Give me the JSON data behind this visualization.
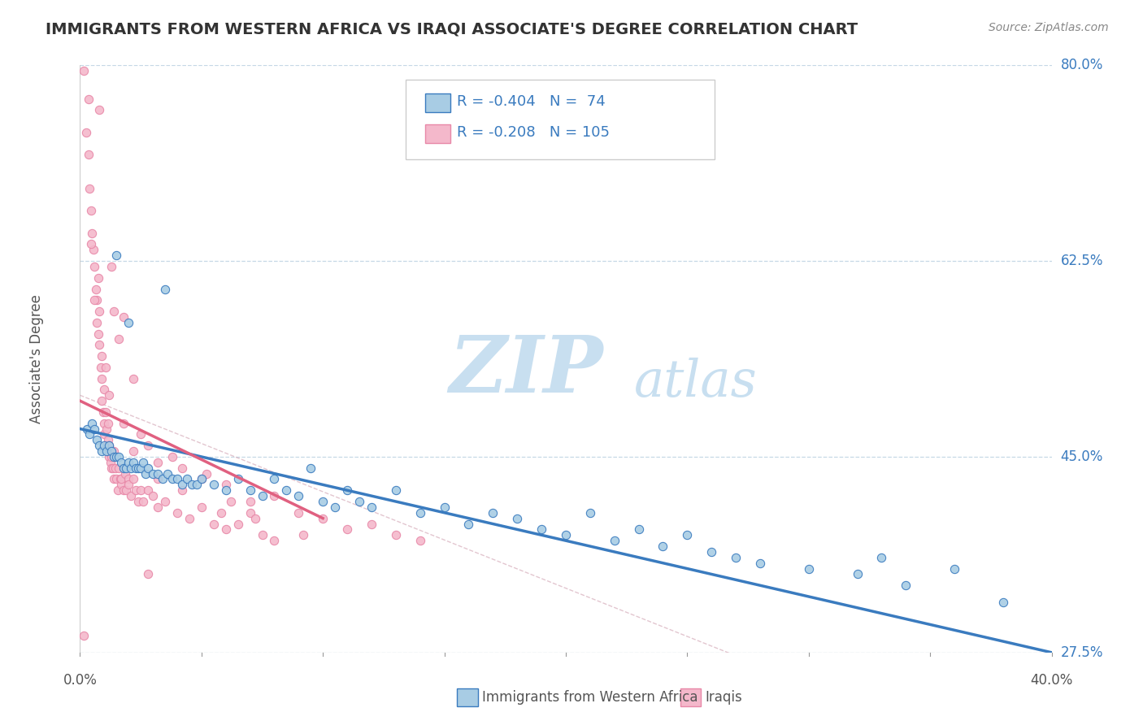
{
  "title": "IMMIGRANTS FROM WESTERN AFRICA VS IRAQI ASSOCIATE'S DEGREE CORRELATION CHART",
  "source": "Source: ZipAtlas.com",
  "xmin": 0.0,
  "xmax": 40.0,
  "ymin": 27.5,
  "ymax": 80.0,
  "ylabel": "Associate's Degree",
  "legend_label1": "Immigrants from Western Africa",
  "legend_label2": "Iraqis",
  "R1": -0.404,
  "N1": 74,
  "R2": -0.208,
  "N2": 105,
  "color_blue": "#a8cce4",
  "color_pink": "#f4b8cb",
  "color_blue_dark": "#3a7bbf",
  "color_pink_line": "#e06080",
  "watermark_zip_color": "#c8dff0",
  "watermark_atlas_color": "#c8dff0",
  "blue_scatter": [
    [
      0.3,
      47.5
    ],
    [
      0.4,
      47.0
    ],
    [
      0.5,
      48.0
    ],
    [
      0.6,
      47.5
    ],
    [
      0.7,
      46.5
    ],
    [
      0.8,
      46.0
    ],
    [
      0.9,
      45.5
    ],
    [
      1.0,
      46.0
    ],
    [
      1.1,
      45.5
    ],
    [
      1.2,
      46.0
    ],
    [
      1.3,
      45.5
    ],
    [
      1.4,
      45.0
    ],
    [
      1.5,
      45.0
    ],
    [
      1.6,
      45.0
    ],
    [
      1.7,
      44.5
    ],
    [
      1.8,
      44.0
    ],
    [
      1.9,
      44.0
    ],
    [
      2.0,
      44.5
    ],
    [
      2.1,
      44.0
    ],
    [
      2.2,
      44.5
    ],
    [
      2.3,
      44.0
    ],
    [
      2.4,
      44.0
    ],
    [
      2.5,
      44.0
    ],
    [
      2.6,
      44.5
    ],
    [
      2.7,
      43.5
    ],
    [
      2.8,
      44.0
    ],
    [
      3.0,
      43.5
    ],
    [
      3.2,
      43.5
    ],
    [
      3.4,
      43.0
    ],
    [
      3.6,
      43.5
    ],
    [
      3.8,
      43.0
    ],
    [
      4.0,
      43.0
    ],
    [
      4.2,
      42.5
    ],
    [
      4.4,
      43.0
    ],
    [
      4.6,
      42.5
    ],
    [
      4.8,
      42.5
    ],
    [
      5.0,
      43.0
    ],
    [
      5.5,
      42.5
    ],
    [
      6.0,
      42.0
    ],
    [
      6.5,
      43.0
    ],
    [
      7.0,
      42.0
    ],
    [
      7.5,
      41.5
    ],
    [
      8.0,
      43.0
    ],
    [
      8.5,
      42.0
    ],
    [
      9.0,
      41.5
    ],
    [
      9.5,
      44.0
    ],
    [
      10.0,
      41.0
    ],
    [
      10.5,
      40.5
    ],
    [
      11.0,
      42.0
    ],
    [
      11.5,
      41.0
    ],
    [
      12.0,
      40.5
    ],
    [
      13.0,
      42.0
    ],
    [
      14.0,
      40.0
    ],
    [
      15.0,
      40.5
    ],
    [
      16.0,
      39.0
    ],
    [
      17.0,
      40.0
    ],
    [
      18.0,
      39.5
    ],
    [
      19.0,
      38.5
    ],
    [
      20.0,
      38.0
    ],
    [
      21.0,
      40.0
    ],
    [
      22.0,
      37.5
    ],
    [
      23.0,
      38.5
    ],
    [
      24.0,
      37.0
    ],
    [
      25.0,
      38.0
    ],
    [
      26.0,
      36.5
    ],
    [
      27.0,
      36.0
    ],
    [
      28.0,
      35.5
    ],
    [
      30.0,
      35.0
    ],
    [
      32.0,
      34.5
    ],
    [
      34.0,
      33.5
    ],
    [
      36.0,
      35.0
    ],
    [
      38.0,
      32.0
    ],
    [
      1.5,
      63.0
    ],
    [
      3.5,
      60.0
    ],
    [
      2.0,
      57.0
    ],
    [
      33.0,
      36.0
    ]
  ],
  "pink_scatter": [
    [
      0.15,
      79.5
    ],
    [
      0.25,
      74.0
    ],
    [
      0.35,
      72.0
    ],
    [
      0.4,
      69.0
    ],
    [
      0.45,
      67.0
    ],
    [
      0.5,
      65.0
    ],
    [
      0.55,
      63.5
    ],
    [
      0.6,
      62.0
    ],
    [
      0.65,
      60.0
    ],
    [
      0.7,
      59.0
    ],
    [
      0.7,
      57.0
    ],
    [
      0.75,
      56.0
    ],
    [
      0.8,
      58.0
    ],
    [
      0.8,
      55.0
    ],
    [
      0.85,
      53.0
    ],
    [
      0.9,
      52.0
    ],
    [
      0.9,
      50.0
    ],
    [
      0.95,
      49.0
    ],
    [
      1.0,
      51.0
    ],
    [
      1.0,
      48.0
    ],
    [
      1.0,
      47.0
    ],
    [
      1.05,
      49.0
    ],
    [
      1.1,
      47.5
    ],
    [
      1.1,
      46.0
    ],
    [
      1.15,
      48.0
    ],
    [
      1.15,
      46.5
    ],
    [
      1.2,
      45.0
    ],
    [
      1.2,
      46.0
    ],
    [
      1.25,
      44.5
    ],
    [
      1.3,
      44.0
    ],
    [
      1.3,
      45.0
    ],
    [
      1.35,
      44.0
    ],
    [
      1.4,
      43.0
    ],
    [
      1.4,
      45.5
    ],
    [
      1.45,
      44.0
    ],
    [
      1.5,
      43.0
    ],
    [
      1.55,
      42.0
    ],
    [
      1.6,
      44.0
    ],
    [
      1.65,
      43.0
    ],
    [
      1.7,
      42.5
    ],
    [
      1.7,
      43.0
    ],
    [
      1.8,
      42.0
    ],
    [
      1.85,
      43.5
    ],
    [
      1.9,
      42.0
    ],
    [
      2.0,
      43.0
    ],
    [
      2.0,
      42.5
    ],
    [
      2.1,
      41.5
    ],
    [
      2.2,
      43.0
    ],
    [
      2.3,
      42.0
    ],
    [
      2.4,
      41.0
    ],
    [
      2.5,
      42.0
    ],
    [
      2.6,
      41.0
    ],
    [
      2.8,
      42.0
    ],
    [
      3.0,
      41.5
    ],
    [
      3.2,
      40.5
    ],
    [
      3.5,
      41.0
    ],
    [
      4.0,
      40.0
    ],
    [
      4.5,
      39.5
    ],
    [
      5.0,
      40.5
    ],
    [
      5.5,
      39.0
    ],
    [
      6.0,
      38.5
    ],
    [
      6.5,
      39.0
    ],
    [
      7.0,
      40.0
    ],
    [
      7.5,
      38.0
    ],
    [
      8.0,
      37.5
    ],
    [
      2.5,
      47.0
    ],
    [
      3.2,
      44.5
    ],
    [
      4.2,
      44.0
    ],
    [
      5.0,
      43.0
    ],
    [
      6.0,
      42.5
    ],
    [
      7.0,
      41.0
    ],
    [
      8.0,
      41.5
    ],
    [
      9.0,
      40.0
    ],
    [
      10.0,
      39.5
    ],
    [
      11.0,
      38.5
    ],
    [
      12.0,
      39.0
    ],
    [
      13.0,
      38.0
    ],
    [
      14.0,
      37.5
    ],
    [
      0.8,
      76.0
    ],
    [
      0.35,
      77.0
    ],
    [
      0.45,
      64.0
    ],
    [
      1.3,
      62.0
    ],
    [
      1.8,
      57.5
    ],
    [
      2.8,
      46.0
    ],
    [
      3.8,
      45.0
    ],
    [
      5.2,
      43.5
    ],
    [
      6.2,
      41.0
    ],
    [
      7.2,
      39.5
    ],
    [
      9.2,
      38.0
    ],
    [
      2.2,
      52.0
    ],
    [
      1.6,
      55.5
    ],
    [
      1.4,
      58.0
    ],
    [
      0.75,
      61.0
    ],
    [
      1.05,
      53.0
    ],
    [
      1.2,
      50.5
    ],
    [
      1.8,
      48.0
    ],
    [
      2.2,
      45.5
    ],
    [
      3.2,
      43.0
    ],
    [
      4.2,
      42.0
    ],
    [
      5.8,
      40.0
    ],
    [
      0.9,
      54.0
    ],
    [
      0.6,
      59.0
    ],
    [
      2.8,
      34.5
    ],
    [
      0.15,
      29.0
    ]
  ],
  "blue_line_x": [
    0.0,
    40.0
  ],
  "blue_line_y": [
    47.5,
    27.5
  ],
  "pink_line_x": [
    0.0,
    10.0
  ],
  "pink_line_y": [
    50.0,
    39.5
  ],
  "gray_line_x": [
    0.0,
    40.0
  ],
  "gray_line_y": [
    50.5,
    16.0
  ],
  "ytick_labels": [
    "80.0%",
    "62.5%",
    "45.0%",
    "27.5%"
  ],
  "ytick_vals": [
    80.0,
    62.5,
    45.0,
    27.5
  ],
  "xtick_left": "0.0%",
  "xtick_right": "40.0%"
}
